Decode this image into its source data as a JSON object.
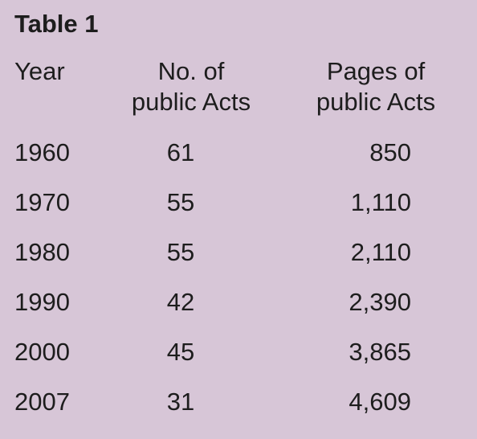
{
  "table": {
    "title": "Table 1",
    "headers": {
      "year": "Year",
      "acts_line1": "No. of",
      "acts_line2": "public Acts",
      "pages_line1": "Pages of",
      "pages_line2": "public Acts"
    },
    "rows": [
      {
        "year": "1960",
        "acts": "61",
        "pages": "850"
      },
      {
        "year": "1970",
        "acts": "55",
        "pages": "1,110"
      },
      {
        "year": "1980",
        "acts": "55",
        "pages": "2,110"
      },
      {
        "year": "1990",
        "acts": "42",
        "pages": "2,390"
      },
      {
        "year": "2000",
        "acts": "45",
        "pages": "3,865"
      },
      {
        "year": "2007",
        "acts": "31",
        "pages": "4,609"
      }
    ]
  },
  "colors": {
    "background": "#d7c6d7",
    "text": "#1d1d1d"
  }
}
